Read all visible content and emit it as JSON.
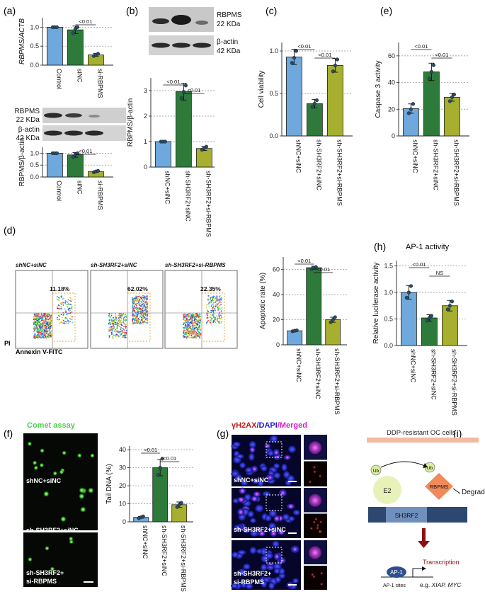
{
  "panels": {
    "a": "(a)",
    "b": "(b)",
    "c": "(c)",
    "d": "(d)",
    "e": "(e)",
    "f": "(f)",
    "g": "(g)",
    "h": "(h)",
    "i": "(i)"
  },
  "colors": {
    "blue": "#6fa8dc",
    "green": "#2d7a3a",
    "yellow": "#a6b02e"
  },
  "blots": {
    "a": {
      "rbpms": "RBPMS",
      "rbpms_kda": "22 KDa",
      "actin": "β-actin",
      "actin_kda": "42 KDa"
    },
    "b": {
      "rbpms": "RBPMS",
      "rbpms_kda": "22 KDa",
      "actin": "β-actin",
      "actin_kda": "42 KDa"
    }
  },
  "flow": {
    "groups": [
      "shNC+siNC",
      "sh-SH3RF2+siNC",
      "sh-SH3RF2+si-RBPMS"
    ],
    "percents": [
      "11.18%",
      "62.02%",
      "22.35%"
    ],
    "yaxis": "PI",
    "xaxis": "Annexin V-FITC"
  },
  "comet": {
    "title": "Comet assay",
    "labels": [
      "shNC+siNC",
      "sh-SH3RF2+siNC",
      "sh-SH3RF2+",
      "si-RBPMS"
    ]
  },
  "immuno": {
    "t1": "γH2AX",
    "t2": "/DAPI",
    "t3": "/Merged",
    "labels": [
      "shNC+siNC",
      "sh-SH3RF2+siNC",
      "sh-SH3RF2+",
      "si-RBPMS"
    ]
  },
  "schematic": {
    "cell": "DDP-resistant OC cells",
    "sh3rf2": "SH3RF2",
    "e2": "E2",
    "rbpms": "RBPMS",
    "ub": "Ub",
    "degradation": "Degradation",
    "ap1": "AP-1",
    "transcription": "Transcription",
    "sites": "AP-1 sites",
    "eg": "e.g. ",
    "genes": "XIAP, MYC"
  },
  "chart_data": [
    {
      "type": "bar",
      "ylabel": "RBPMS/ACTB",
      "ylabel_italic": true,
      "categories": [
        "Control",
        "siNC",
        "si-RBPMS"
      ],
      "values": [
        1.0,
        0.93,
        0.27
      ],
      "errors": [
        0.01,
        0.1,
        0.04
      ],
      "points": [
        [
          1.0,
          1.0,
          1.0
        ],
        [
          0.84,
          0.95,
          1.0
        ],
        [
          0.24,
          0.27,
          0.3
        ]
      ],
      "ylim": [
        0,
        1.25
      ],
      "yticks": [
        0,
        0.5,
        1.0
      ],
      "yticklabels": [
        "0.0",
        "0.5",
        "1.0"
      ],
      "sig": [
        {
          "from": 1,
          "to": 2,
          "label": "<0.01"
        }
      ],
      "colors": [
        "blue",
        "green",
        "yellow"
      ]
    },
    {
      "type": "bar",
      "ylabel": "RBPMS/β-actin",
      "categories": [
        "Control",
        "siNC",
        "si-RBPMS"
      ],
      "values": [
        1.0,
        0.93,
        0.23
      ],
      "errors": [
        0.01,
        0.1,
        0.03
      ],
      "points": [
        [
          1.0,
          1.0,
          1.0
        ],
        [
          0.84,
          0.95,
          1.0
        ],
        [
          0.2,
          0.23,
          0.26
        ]
      ],
      "ylim": [
        0,
        1.25
      ],
      "yticks": [
        0,
        0.5,
        1.0
      ],
      "yticklabels": [
        "0.0",
        "0.5",
        "1.0"
      ],
      "sig": [
        {
          "from": 1,
          "to": 2,
          "label": "<0.01"
        }
      ],
      "colors": [
        "blue",
        "green",
        "yellow"
      ]
    },
    {
      "type": "bar",
      "ylabel": "RBPMS/β-actin",
      "categories": [
        "shNC+siNC",
        "sh-SH3RF2+siNC",
        "sh-SH3RF2+si-RBPMS"
      ],
      "values": [
        1.0,
        2.96,
        0.73
      ],
      "errors": [
        0.01,
        0.33,
        0.08
      ],
      "points": [
        [
          1.0,
          1.0,
          1.0
        ],
        [
          2.7,
          2.95,
          3.2
        ],
        [
          0.68,
          0.75,
          0.8
        ]
      ],
      "ylim": [
        0,
        3.5
      ],
      "yticks": [
        0,
        1,
        2,
        3
      ],
      "yticklabels": [
        "0",
        "1",
        "2",
        "3"
      ],
      "sig": [
        {
          "from": 0,
          "to": 1,
          "label": "<0.01",
          "level": 0
        },
        {
          "from": 1,
          "to": 2,
          "label": "<0.01",
          "level": 1
        }
      ],
      "colors": [
        "blue",
        "green",
        "yellow"
      ]
    },
    {
      "type": "bar",
      "ylabel": "Cell viability",
      "categories": [
        "shNC+siNC",
        "sh-SH3RF2+siNC",
        "sh-SH3RF2+si-RBPMS"
      ],
      "values": [
        0.93,
        0.38,
        0.83
      ],
      "errors": [
        0.09,
        0.05,
        0.08
      ],
      "points": [
        [
          0.86,
          0.92,
          1.0
        ],
        [
          0.34,
          0.38,
          0.42
        ],
        [
          0.76,
          0.83,
          0.9
        ]
      ],
      "ylim": [
        0,
        1.1
      ],
      "yticks": [
        0,
        0.5,
        1.0
      ],
      "yticklabels": [
        "0.0",
        "0.5",
        "1.0"
      ],
      "sig": [
        {
          "from": 0,
          "to": 1,
          "label": "<0.01",
          "level": 0
        },
        {
          "from": 1,
          "to": 2,
          "label": "<0.01",
          "level": 1
        }
      ],
      "colors": [
        "blue",
        "green",
        "yellow"
      ]
    },
    {
      "type": "bar",
      "ylabel": "Caspase 3 activity",
      "categories": [
        "shNC+siNC",
        "sh-SH3RF2+siNC",
        "sh-SH3RF2+si-RBPMS"
      ],
      "values": [
        20.5,
        48,
        29
      ],
      "errors": [
        3.5,
        6.5,
        3
      ],
      "points": [
        [
          17,
          20,
          24
        ],
        [
          43,
          48,
          53
        ],
        [
          26,
          29,
          31
        ]
      ],
      "ylim": [
        0,
        70
      ],
      "yticks": [
        0,
        20,
        40,
        60
      ],
      "yticklabels": [
        "0",
        "20",
        "40",
        "60"
      ],
      "sig": [
        {
          "from": 0,
          "to": 1,
          "label": "<0.01",
          "level": 0
        },
        {
          "from": 1,
          "to": 2,
          "label": "<0.01",
          "level": 1
        }
      ],
      "colors": [
        "blue",
        "green",
        "yellow"
      ]
    },
    {
      "type": "bar",
      "ylabel": "Apoptotic rate (%)",
      "categories": [
        "shNC+siNC",
        "sh-SH3RF2+siNC",
        "sh-SH3RF2+si-RBPMS"
      ],
      "values": [
        11.2,
        61.5,
        20
      ],
      "errors": [
        0.5,
        1.2,
        2
      ],
      "points": [
        [
          10.8,
          11.2,
          11.5
        ],
        [
          60.5,
          61.5,
          62
        ],
        [
          18,
          20,
          22
        ]
      ],
      "ylim": [
        0,
        70
      ],
      "yticks": [
        0,
        20,
        40,
        60
      ],
      "yticklabels": [
        "0",
        "20",
        "40",
        "60"
      ],
      "sig": [
        {
          "from": 0,
          "to": 1,
          "label": "<0.01",
          "level": 0
        },
        {
          "from": 1,
          "to": 2,
          "label": "<0.01",
          "level": 1
        }
      ],
      "colors": [
        "blue",
        "green",
        "yellow"
      ]
    },
    {
      "type": "bar",
      "title": "AP-1 activity",
      "ylabel": "Relative luciferase activity",
      "categories": [
        "shNC+siNC",
        "sh-SH3RF2+siNC",
        "sh-SH3RF2+si-RBPMS"
      ],
      "values": [
        1.0,
        0.52,
        0.75
      ],
      "errors": [
        0.13,
        0.06,
        0.1
      ],
      "points": [
        [
          0.9,
          1.0,
          1.12
        ],
        [
          0.47,
          0.52,
          0.56
        ],
        [
          0.68,
          0.75,
          0.83
        ]
      ],
      "ylim": [
        0,
        1.6
      ],
      "yticks": [
        0,
        0.5,
        1.0,
        1.5
      ],
      "yticklabels": [
        "0.0",
        "0.5",
        "1.0",
        "1.5"
      ],
      "sig": [
        {
          "from": 0,
          "to": 1,
          "label": "<0.01",
          "level": 0
        },
        {
          "from": 1,
          "to": 2,
          "label": "NS",
          "level": 1
        }
      ],
      "colors": [
        "blue",
        "green",
        "yellow"
      ]
    },
    {
      "type": "bar",
      "ylabel": "Tail DNA (%)",
      "categories": [
        "shNC+siNC",
        "sh-SH3RF2+siNC",
        "sh-SH3RF2+si-RBPMS"
      ],
      "values": [
        2.5,
        30,
        9.5
      ],
      "errors": [
        0.5,
        4.5,
        1.5
      ],
      "points": [
        [
          2.0,
          2.5,
          3.0
        ],
        [
          26,
          30,
          35
        ],
        [
          8.2,
          9.5,
          10.5
        ]
      ],
      "ylim": [
        0,
        42
      ],
      "yticks": [
        0,
        10,
        20,
        30,
        40
      ],
      "yticklabels": [
        "0",
        "10",
        "20",
        "30",
        "40"
      ],
      "sig": [
        {
          "from": 0,
          "to": 1,
          "label": "<0.01",
          "level": 0
        },
        {
          "from": 1,
          "to": 2,
          "label": "<0.01",
          "level": 1
        }
      ],
      "colors": [
        "blue",
        "green",
        "yellow"
      ]
    }
  ]
}
